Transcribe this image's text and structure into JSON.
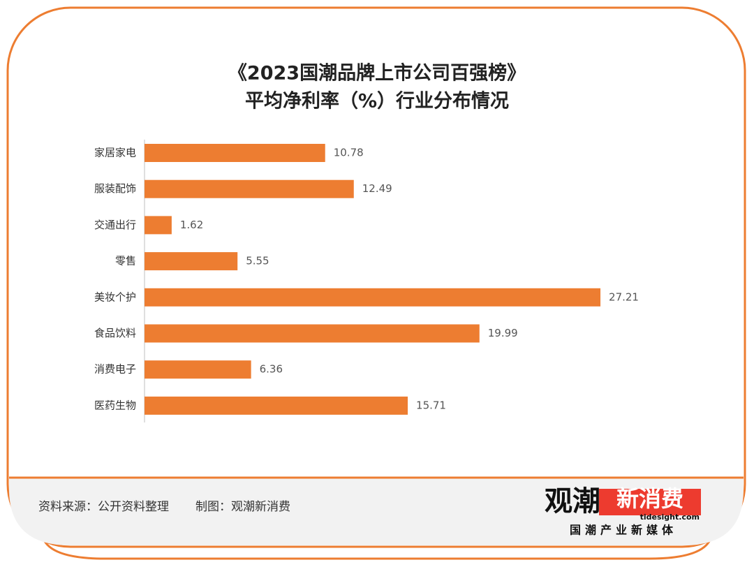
{
  "chart_data": {
    "type": "bar",
    "orientation": "horizontal",
    "title": "《2023国潮品牌上市公司百强榜》",
    "subtitle": "平均净利率（%）行业分布情况",
    "categories": [
      "家居家电",
      "服装配饰",
      "交通出行",
      "零售",
      "美妆个护",
      "食品饮料",
      "消费电子",
      "医药生物"
    ],
    "values": [
      10.78,
      12.49,
      1.62,
      5.55,
      27.21,
      19.99,
      6.36,
      15.71
    ],
    "color": "#ed7d31"
  },
  "footer": {
    "source": "资料来源：公开资料整理",
    "maker": "制图：观潮新消费",
    "logo_main_a": "观潮",
    "logo_main_b": "新消费",
    "logo_url": "tidesight.com",
    "logo_tagline": "国潮产业新媒体"
  }
}
